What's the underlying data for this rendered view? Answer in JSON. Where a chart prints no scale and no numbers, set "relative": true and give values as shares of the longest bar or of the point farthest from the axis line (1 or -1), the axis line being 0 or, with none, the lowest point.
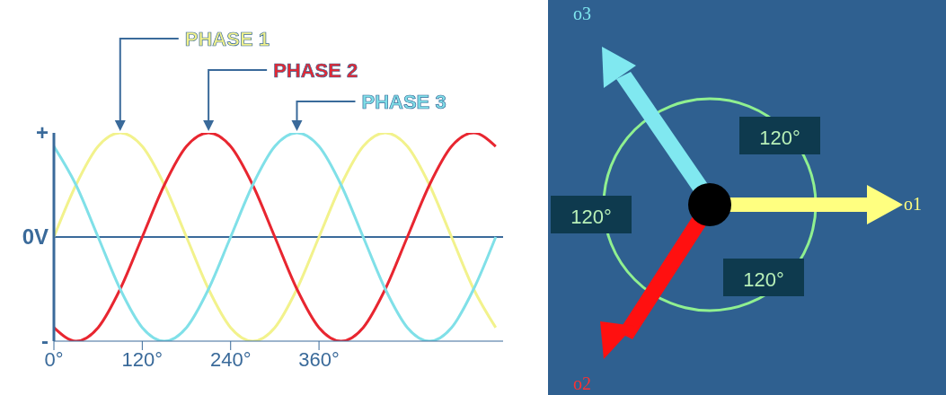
{
  "chart_data": [
    {
      "type": "line",
      "x": [
        0,
        30,
        60,
        90,
        120,
        150,
        180,
        210,
        240,
        270,
        300,
        330,
        360,
        390,
        420,
        450,
        480,
        510,
        540,
        570,
        600
      ],
      "series": [
        {
          "name": "PHASE 1",
          "color": "#f2f28c",
          "values": [
            0,
            0.5,
            0.87,
            1,
            0.87,
            0.5,
            0,
            -0.5,
            -0.87,
            -1,
            -0.87,
            -0.5,
            0,
            0.5,
            0.87,
            1,
            0.87,
            0.5,
            0,
            -0.5,
            -0.87
          ]
        },
        {
          "name": "PHASE 2",
          "color": "#e82630",
          "values": [
            -0.87,
            -1,
            -0.87,
            -0.5,
            0,
            0.5,
            0.87,
            1,
            0.87,
            0.5,
            0,
            -0.5,
            -0.87,
            -1,
            -0.87,
            -0.5,
            0,
            0.5,
            0.87,
            1,
            0.87
          ]
        },
        {
          "name": "PHASE 3",
          "color": "#80e0e8",
          "values": [
            0.87,
            0.5,
            0,
            -0.5,
            -0.87,
            -1,
            -0.87,
            -0.5,
            0,
            0.5,
            0.87,
            1,
            0.87,
            0.5,
            0,
            -0.5,
            -0.87,
            -1,
            -0.87,
            -0.5,
            0
          ]
        }
      ],
      "xlim": [
        0,
        610
      ],
      "xticks": [
        {
          "value": 0,
          "label": "0°"
        },
        {
          "value": 120,
          "label": "120°"
        },
        {
          "value": 240,
          "label": "240°"
        },
        {
          "value": 360,
          "label": "360°"
        }
      ],
      "relative": true,
      "annotations": [
        "+",
        "0V",
        "-"
      ],
      "ref_lines": [
        {
          "axis": "y",
          "value": 0,
          "color": "#3a6a9a"
        }
      ],
      "grid": false,
      "legend": false,
      "marker": "none",
      "line_style": "solid"
    },
    {
      "type": "other",
      "annotations": [
        "o3",
        "120°",
        "120°",
        "o1",
        "120°",
        "o2"
      ]
    }
  ]
}
